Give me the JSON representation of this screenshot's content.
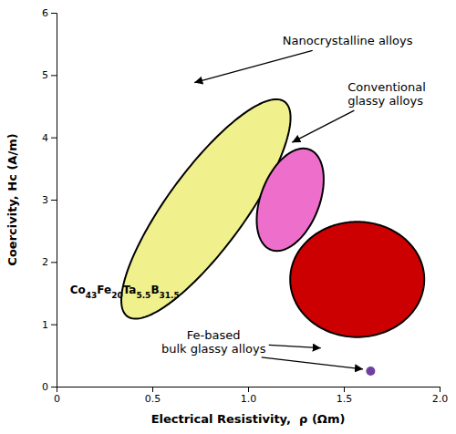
{
  "chart_data": {
    "type": "ellipse",
    "xlabel": "Electrical Resistivity,  ρ (Ωm)",
    "ylabel": "Coercivity, Hᴄ (A/m)",
    "xlim": [
      0,
      2.0
    ],
    "ylim": [
      0,
      6
    ],
    "xticks": [
      0,
      0.5,
      {
        "value": 1.0,
        "label": "1.0"
      },
      1.5,
      {
        "value": 2.0,
        "label": "2.0"
      }
    ],
    "yticks": [
      0,
      1,
      2,
      3,
      4,
      5,
      6
    ],
    "regions": [
      {
        "x": 0.78,
        "y": 2.85,
        "width": 0.48,
        "height": 3.6,
        "angle": -12,
        "color": "#F0F08C"
      },
      {
        "x": 1.22,
        "y": 3.0,
        "width": 0.32,
        "height": 1.65,
        "angle": -5,
        "color": "#EE6ECC"
      },
      {
        "x": 1.57,
        "y": 1.72,
        "width": 0.7,
        "height": 1.85,
        "angle": 0,
        "color": "#CC0000"
      }
    ],
    "points": [
      {
        "x": 1.64,
        "y": 0.25,
        "color": "#7040A0"
      }
    ],
    "annotations": [
      {
        "text": "Nanocrystalline alloys",
        "x": 1.18,
        "y": 5.55,
        "align": "left",
        "arrows": [
          {
            "x": 0.72,
            "y": 4.88
          }
        ]
      },
      {
        "text": "Conventional\nglassy alloys",
        "x": 1.52,
        "y": 4.7,
        "align": "left",
        "arrows": [
          {
            "x": 1.23,
            "y": 3.92
          }
        ]
      },
      {
        "text": "Fe-based\nbulk glassy alloys",
        "x": 0.82,
        "y": 0.72,
        "align": "center",
        "arrows": [
          {
            "x": 1.38,
            "y": 0.62
          },
          {
            "x0": 1.07,
            "y0": 0.47,
            "x": 1.6,
            "y": 0.28
          }
        ]
      }
    ],
    "formula": {
      "x": 0.07,
      "y": 1.55,
      "parts": [
        {
          "text": "Co"
        },
        {
          "text": "43",
          "sub": true
        },
        {
          "text": "Fe"
        },
        {
          "text": "20",
          "sub": true
        },
        {
          "text": "Ta"
        },
        {
          "text": "5.5",
          "sub": true
        },
        {
          "text": "B"
        },
        {
          "text": "31.5",
          "sub": true
        }
      ]
    }
  }
}
